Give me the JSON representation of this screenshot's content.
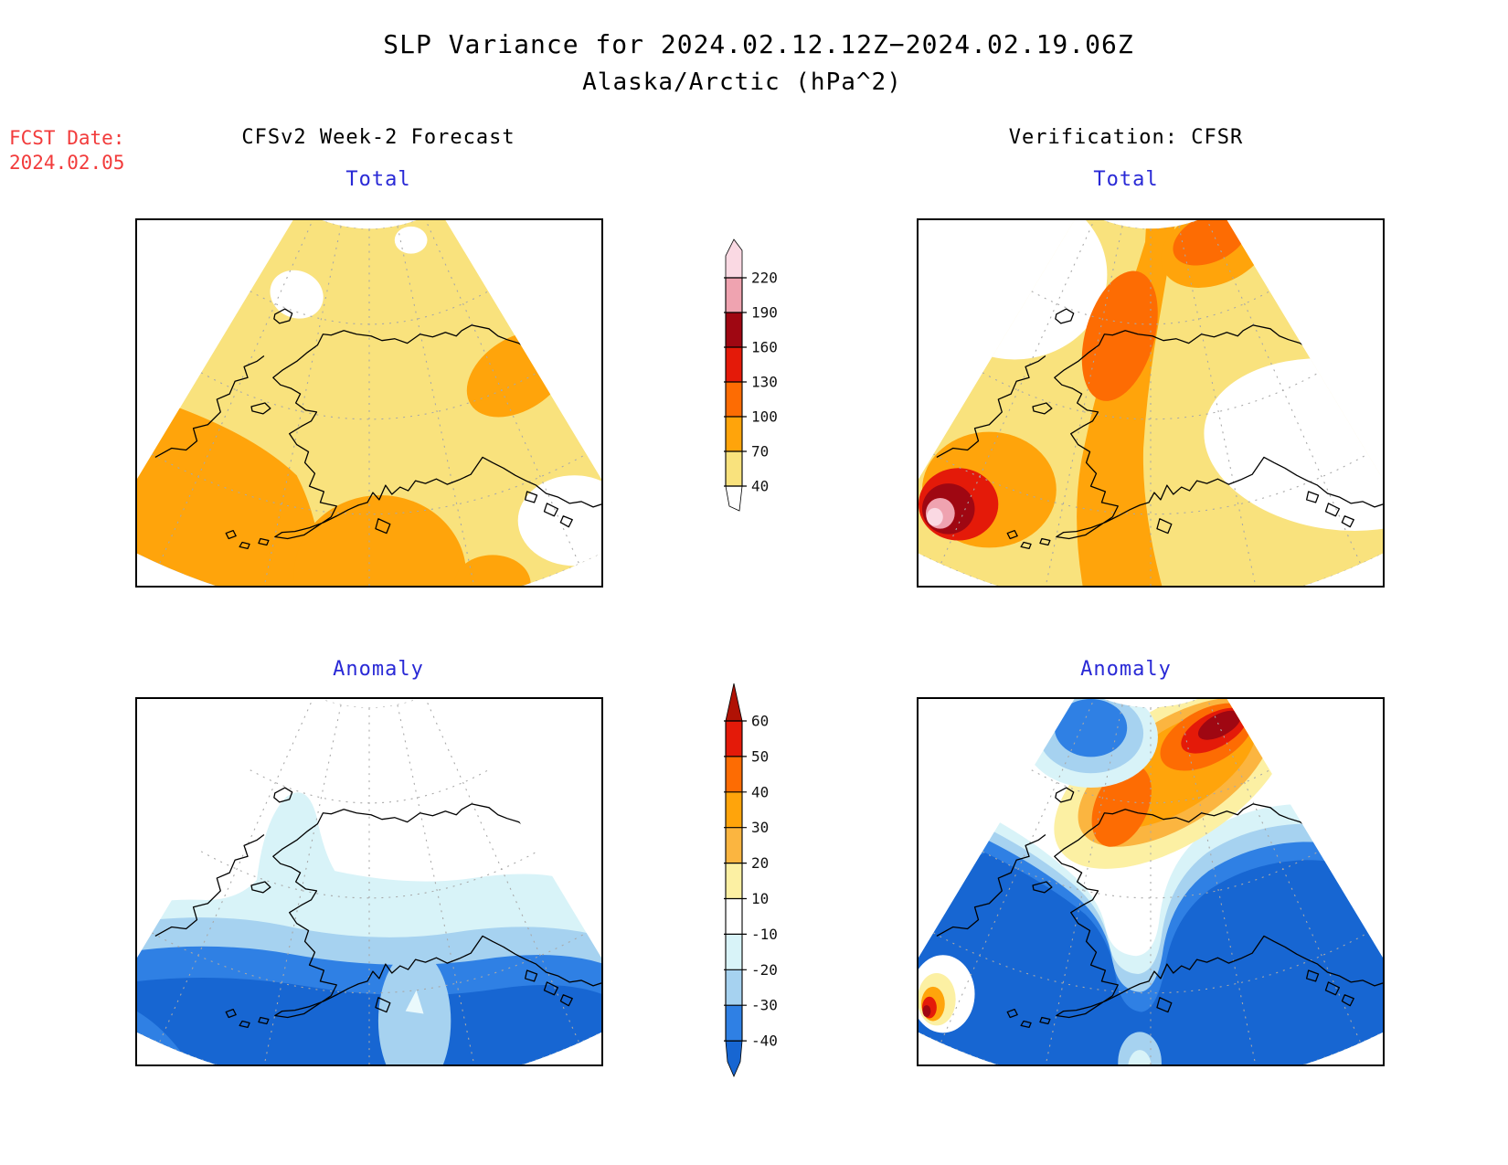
{
  "header": {
    "title": "SLP Variance for 2024.02.12.12Z−2024.02.19.06Z",
    "subtitle": "Alaska/Arctic (hPa^2)"
  },
  "fcst": {
    "label": "FCST Date:",
    "value": "2024.02.05"
  },
  "columns": {
    "left": {
      "header": "CFSv2 Week-2 Forecast"
    },
    "right": {
      "header": "Verification: CFSR"
    }
  },
  "panels": {
    "tl": {
      "label": "Total"
    },
    "tr": {
      "label": "Total"
    },
    "bl": {
      "label": "Anomaly"
    },
    "br": {
      "label": "Anomaly"
    }
  },
  "colorbars": {
    "total": {
      "ticks": [
        "220",
        "190",
        "160",
        "130",
        "100",
        "70",
        "40"
      ]
    },
    "anomaly": {
      "ticks": [
        "60",
        "50",
        "40",
        "30",
        "20",
        "10",
        "-10",
        "-20",
        "-30",
        "-40"
      ]
    }
  },
  "colors": {
    "yellow": "#F9E27D",
    "orange": "#FFA40B",
    "dark_orange": "#FD6C03",
    "red": "#E41A09",
    "dark_red": "#9F0712",
    "pink": "#EFA3B0",
    "pale_pink": "#FAD9E3",
    "light_orange": "#FBB540",
    "pale_yellow": "#FCF0A3",
    "white": "#FFFFFF",
    "pale_blue": "#D8F3F8",
    "light_blue": "#A6D2F0",
    "med_blue": "#2F80E4",
    "dark_blue": "#1766D2",
    "tip_red": "#B01205",
    "near_white_blue": "#EAF9FC",
    "label_blue": "#2929D6",
    "fcst_red": "#F23B3B",
    "grid_gray": "#A8A8A8",
    "coast_black": "#000000"
  },
  "chart_data": {
    "type": "heatmap",
    "title": "SLP Variance for 2024.02.12.12Z−2024.02.19.06Z",
    "subtitle": "Alaska/Arctic (hPa^2)",
    "forecast_date": "2024.02.05",
    "valid_period": "2024.02.12 12Z to 2024.02.19 06Z",
    "units": "hPa^2",
    "projection": "polar azimuthal wedge over Alaska/Arctic",
    "panels": [
      {
        "position": "top-left",
        "column": "CFSv2 Week-2 Forecast",
        "field": "Total",
        "value_range_shown": [
          40,
          130
        ],
        "features": [
          "most of domain in 40-70 band",
          "70-100 lobes over western Bering Sea (lower-left), south of Alaska Peninsula (bottom-center) and east of interior Alaska (right)",
          "small <40 gaps near the Arctic edge and southeast coast"
        ]
      },
      {
        "position": "top-right",
        "column": "Verification: CFSR",
        "field": "Total",
        "value_range_shown": [
          40,
          220
        ],
        "features": [
          "diagonal 70-130 band from the Bering Sea across western Alaska to the Arctic",
          "100-130 cores over northwest Alaska and the northern corner",
          "maximum >190 hPa^2 wedge at the far western Bering Sea edge",
          "<40 over the Gulf of Alaska and northwest Canada"
        ]
      },
      {
        "position": "bottom-left",
        "column": "CFSv2 Week-2 Forecast",
        "field": "Anomaly",
        "value_range_shown": [
          -40,
          10
        ],
        "features": [
          "negative anomalies strengthening southward in zonal bands",
          "below -40 along the North Pacific / Gulf of Alaska",
          "weaker (-20 to -30) pocket south of the Alaska Peninsula",
          "near-neutral over the Arctic"
        ]
      },
      {
        "position": "bottom-right",
        "column": "Verification: CFSR",
        "field": "Anomaly",
        "value_range_shown": [
          -40,
          60
        ],
        "features": [
          "strong negative anomalies (<-40) covering the North Pacific and Gulf of Alaska",
          "positive anomalies 20-60 in a band over northwest Alaska to the Arctic corner with >50 core",
          "small positive spot at the far western edge",
          "weak negative pocket at the top-left Arctic edge"
        ]
      }
    ],
    "colorbar_total": {
      "levels": [
        40,
        70,
        100,
        130,
        160,
        190,
        220
      ],
      "palette": [
        "#F9E27D",
        "#FFA40B",
        "#FD6C03",
        "#E41A09",
        "#9F0712",
        "#EFA3B0",
        "#FAD9E3"
      ]
    },
    "colorbar_anomaly": {
      "levels": [
        -40,
        -30,
        -20,
        -10,
        10,
        20,
        30,
        40,
        50,
        60
      ],
      "palette": [
        "#1766D2",
        "#2F80E4",
        "#A6D2F0",
        "#D8F3F8",
        "#FFFFFF",
        "#FCF0A3",
        "#FBB540",
        "#FFA40B",
        "#FD6C03",
        "#E41A09",
        "#B01205"
      ]
    }
  }
}
